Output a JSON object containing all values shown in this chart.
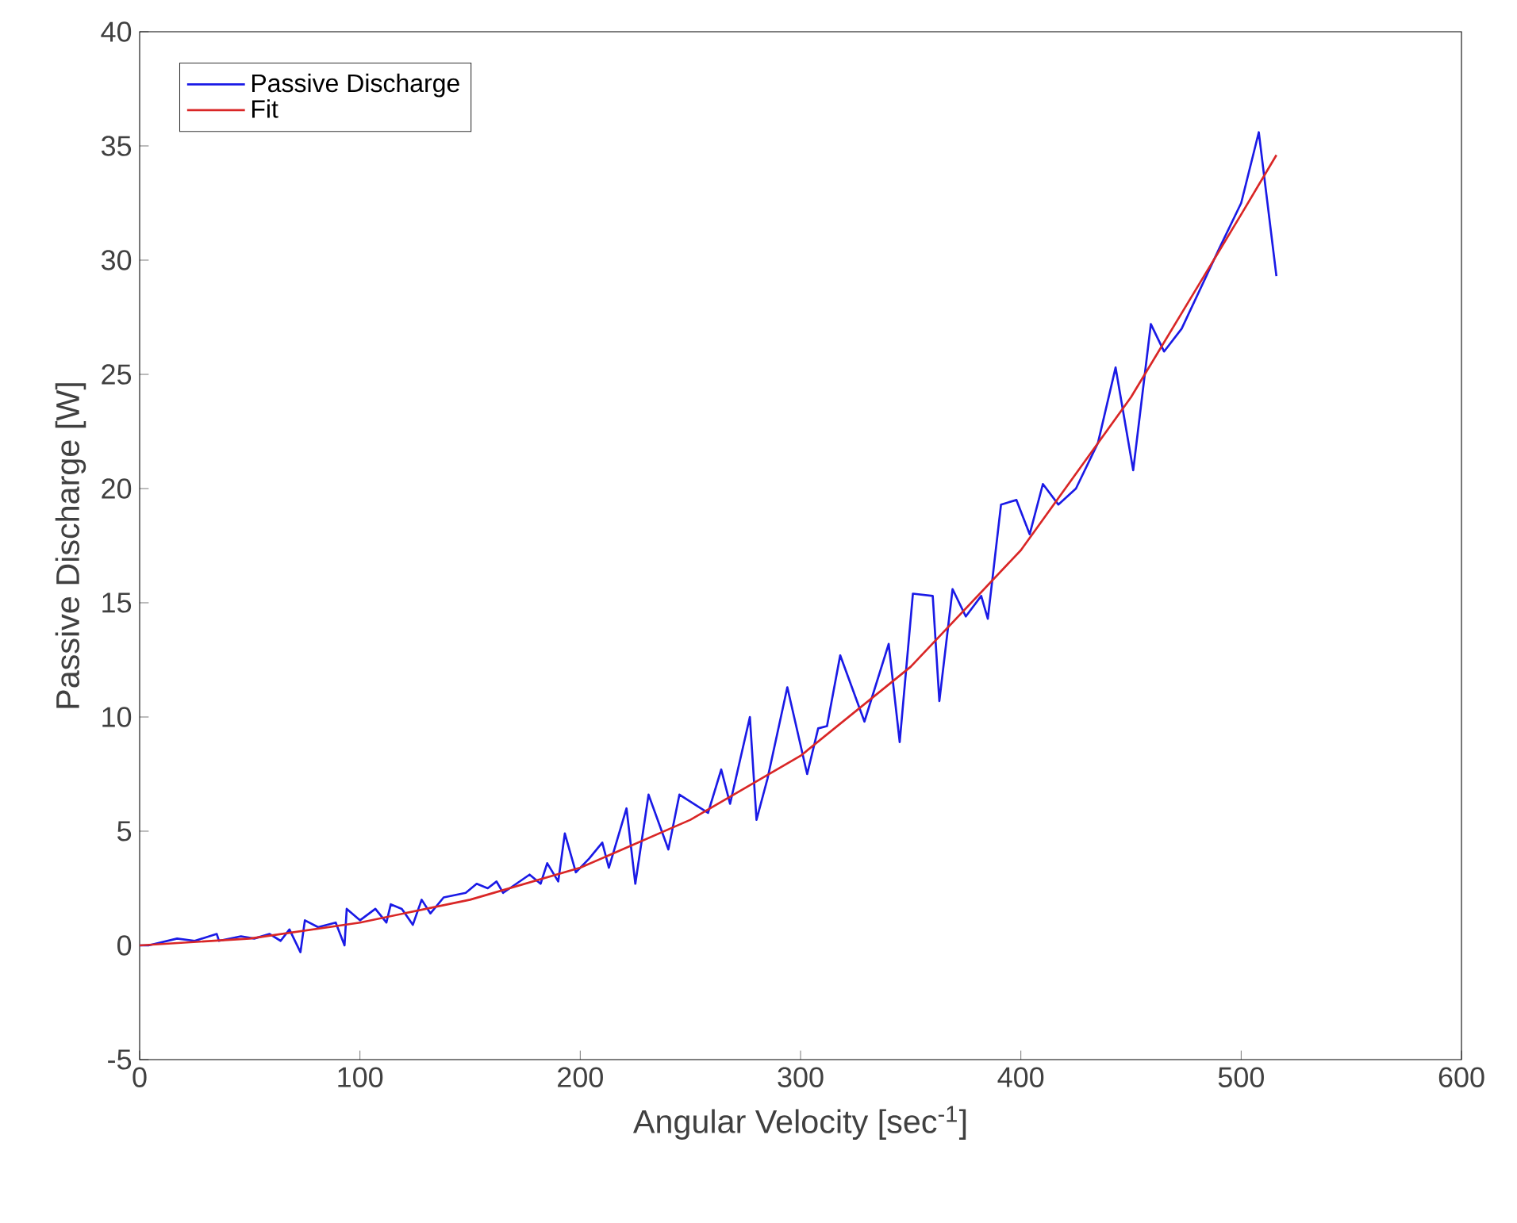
{
  "chart_data": {
    "type": "line",
    "xlabel": "Angular Velocity [sec$^{-1}$]",
    "ylabel": "Passive Discharge [W]",
    "xlim": [
      0,
      600
    ],
    "xticks": [
      0,
      100,
      200,
      300,
      400,
      500,
      600
    ],
    "ylim": [
      -5,
      40
    ],
    "yticks": [
      -5,
      0,
      5,
      10,
      15,
      20,
      25,
      30,
      35,
      40
    ],
    "legend": "top left",
    "series": [
      {
        "name": "Passive Discharge",
        "color": "#1a1ae6",
        "x": [
          0,
          4,
          17,
          25,
          35,
          36,
          46,
          52,
          59,
          64,
          68,
          73,
          75,
          81,
          89,
          93,
          94,
          100,
          107,
          112,
          114,
          119,
          124,
          128,
          132,
          138,
          148,
          153,
          158,
          162,
          165,
          177,
          182,
          185,
          190,
          193,
          198,
          204,
          210,
          213,
          221,
          225,
          231,
          240,
          245,
          258,
          264,
          268,
          277,
          280,
          285,
          294,
          303,
          308,
          312,
          318,
          329,
          340,
          345,
          351,
          360,
          363,
          369,
          375,
          382,
          385,
          391,
          398,
          404,
          410,
          417,
          425,
          435,
          443,
          451,
          459,
          465,
          473,
          490,
          500,
          508,
          516
        ],
        "values": [
          0,
          0,
          0.3,
          0.2,
          0.5,
          0.2,
          0.4,
          0.3,
          0.5,
          0.2,
          0.7,
          -0.3,
          1.1,
          0.8,
          1.0,
          0.0,
          1.6,
          1.1,
          1.6,
          1.0,
          1.8,
          1.6,
          0.9,
          2.0,
          1.4,
          2.1,
          2.3,
          2.7,
          2.5,
          2.8,
          2.3,
          3.1,
          2.7,
          3.6,
          2.8,
          4.9,
          3.2,
          3.8,
          4.5,
          3.4,
          6.0,
          2.7,
          6.6,
          4.2,
          6.6,
          5.8,
          7.7,
          6.2,
          10.0,
          5.5,
          7.3,
          11.3,
          7.5,
          9.5,
          9.6,
          12.7,
          9.8,
          13.2,
          8.9,
          15.4,
          15.3,
          10.7,
          15.6,
          14.4,
          15.3,
          14.3,
          19.3,
          19.5,
          18.0,
          20.2,
          19.3,
          20.0,
          22.0,
          25.3,
          20.8,
          27.2,
          26.0,
          27.0,
          30.5,
          32.5,
          35.6,
          29.3
        ]
      },
      {
        "name": "Fit",
        "color": "#d92626",
        "x": [
          0,
          50,
          100,
          150,
          200,
          250,
          300,
          350,
          400,
          450,
          500,
          516
        ],
        "values": [
          0,
          0.3,
          1.0,
          2.0,
          3.4,
          5.5,
          8.3,
          12.2,
          17.3,
          24.0,
          32.0,
          34.6
        ]
      }
    ]
  }
}
